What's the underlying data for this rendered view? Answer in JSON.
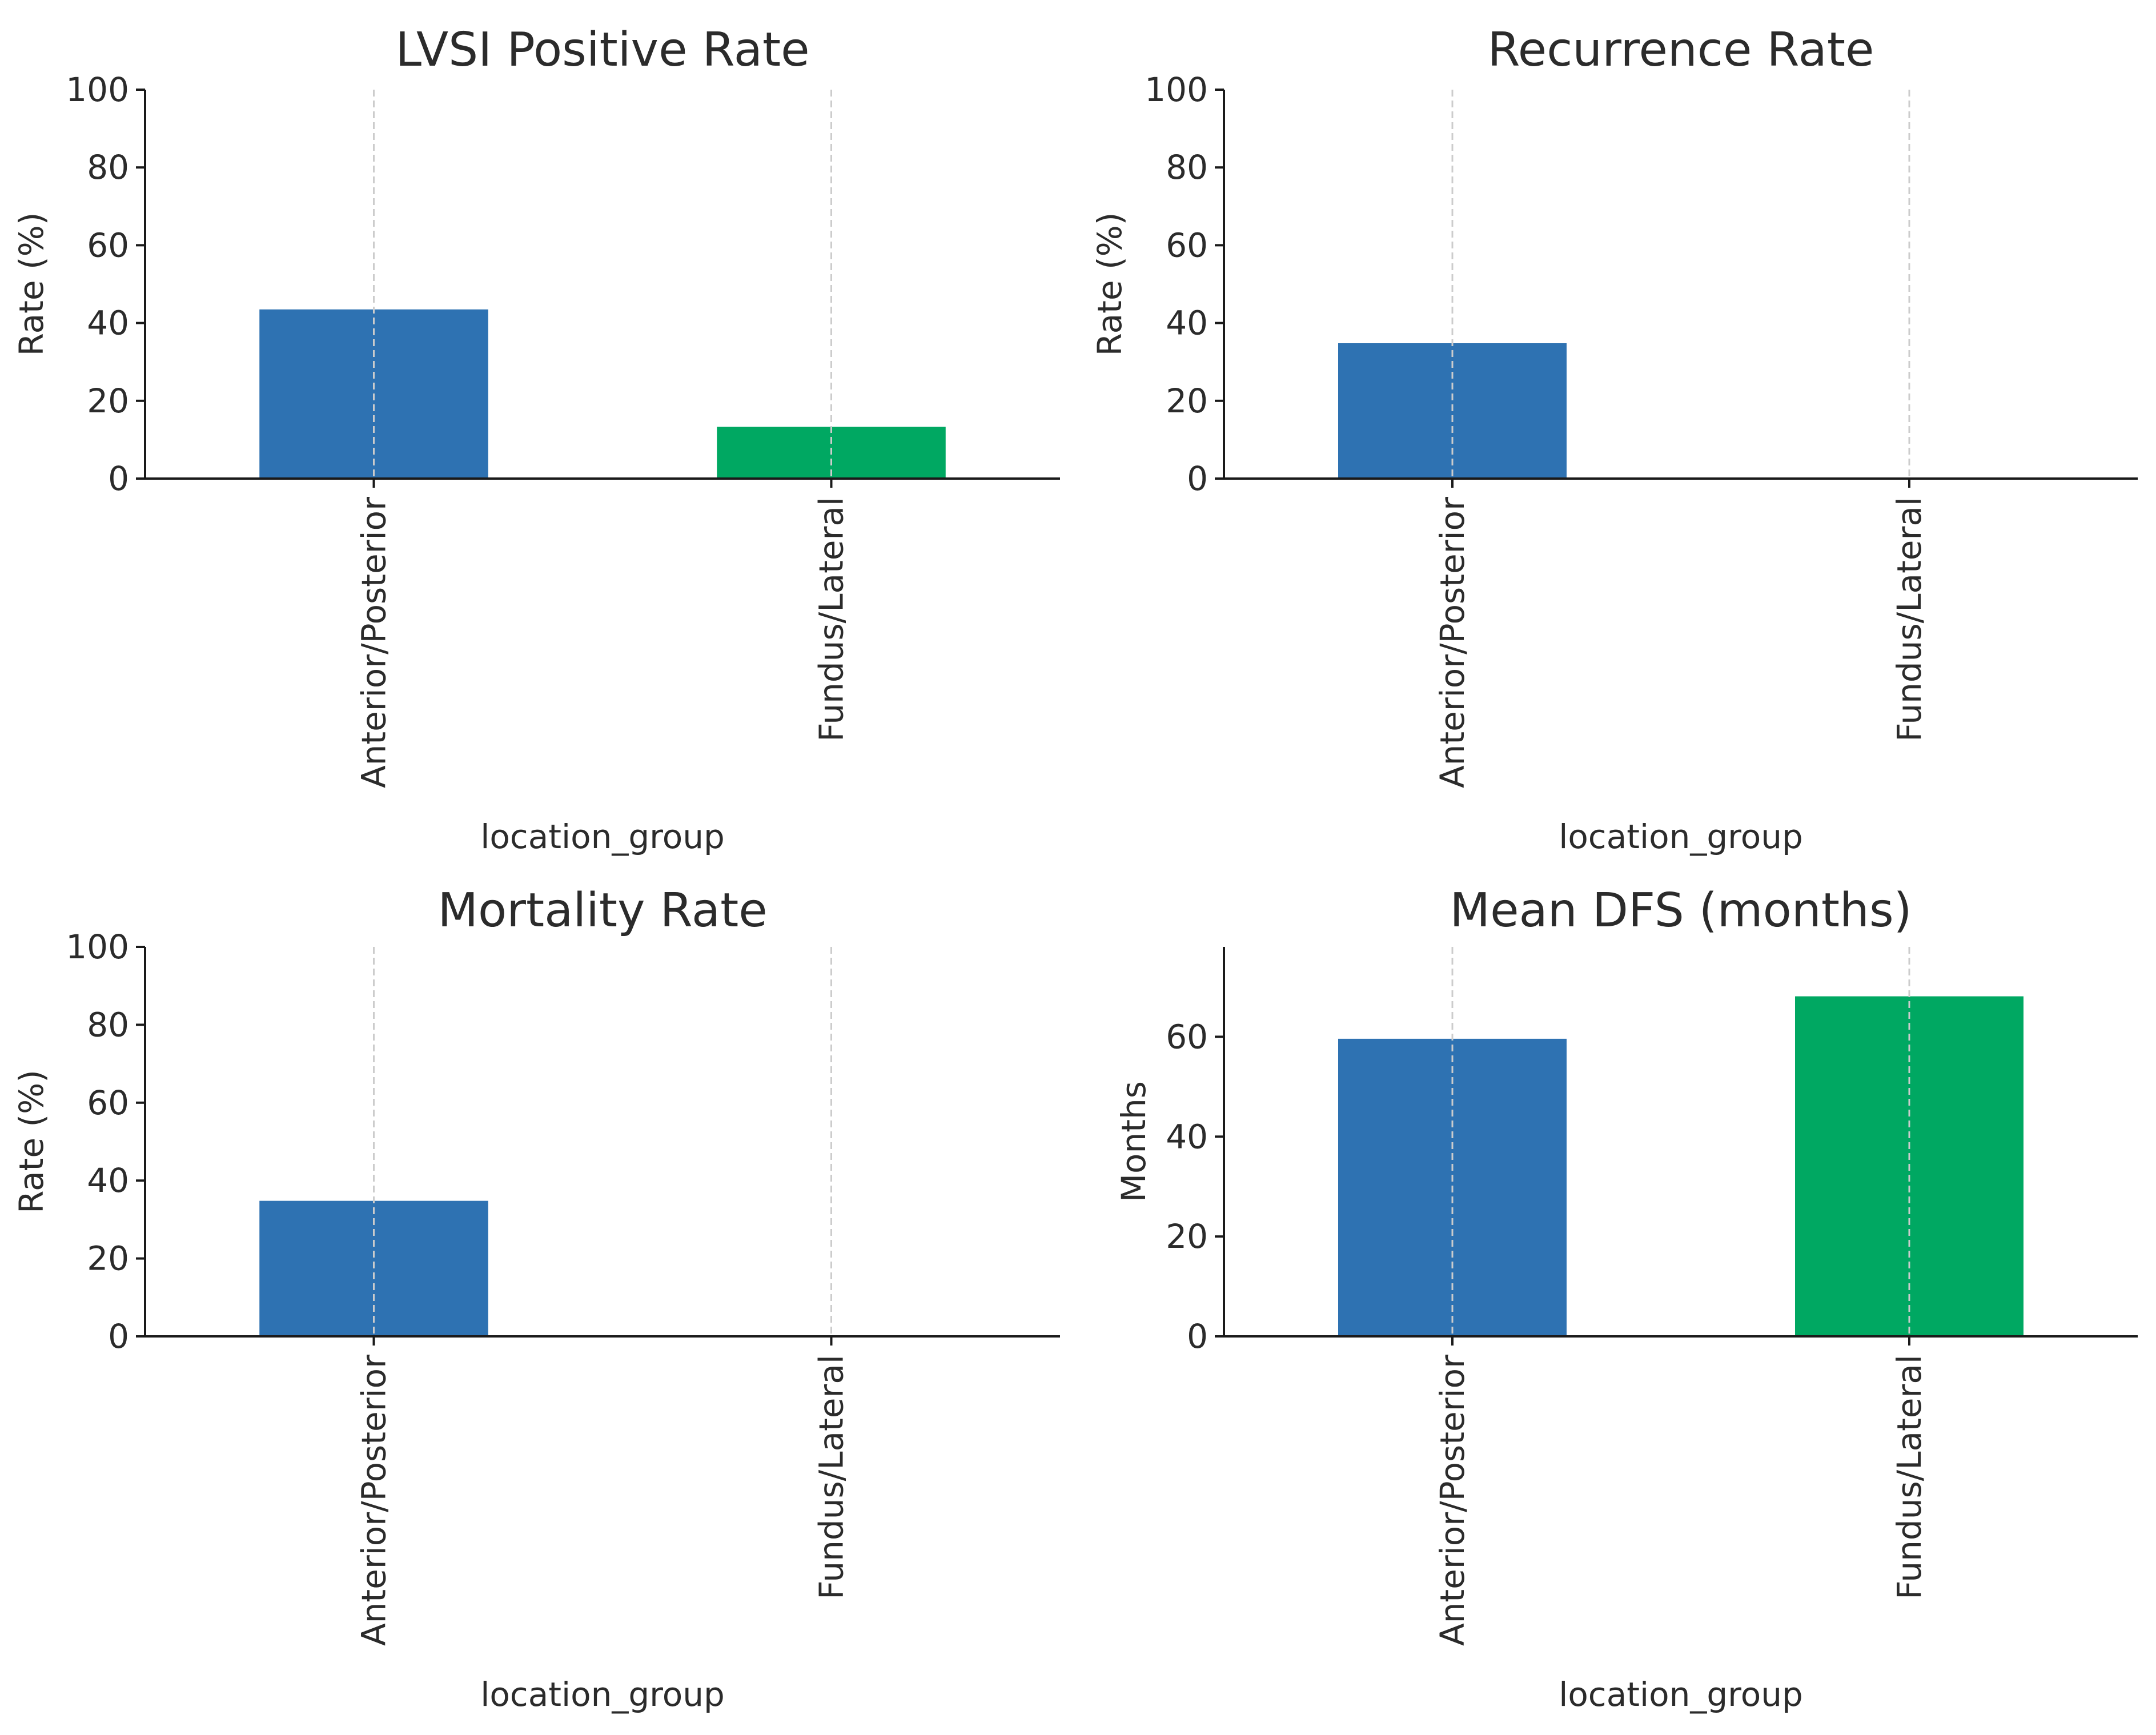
{
  "chart_data": [
    {
      "type": "bar",
      "title": "LVSI Positive Rate",
      "xlabel": "location_group",
      "ylabel": "Rate (%)",
      "categories": [
        "Anterior/Posterior",
        "Fundus/Lateral"
      ],
      "values": [
        43.5,
        13.3
      ],
      "ylim": [
        0,
        100
      ],
      "yticks": [
        "0",
        "20",
        "40",
        "60",
        "80",
        "100"
      ],
      "grid": "x",
      "colors": [
        "#2e72b2",
        "#00a862"
      ]
    },
    {
      "type": "bar",
      "title": "Recurrence Rate",
      "xlabel": "location_group",
      "ylabel": "Rate (%)",
      "categories": [
        "Anterior/Posterior",
        "Fundus/Lateral"
      ],
      "values": [
        34.8,
        0
      ],
      "ylim": [
        0,
        100
      ],
      "yticks": [
        "0",
        "20",
        "40",
        "60",
        "80",
        "100"
      ],
      "grid": "x",
      "colors": [
        "#2e72b2",
        "#00a862"
      ]
    },
    {
      "type": "bar",
      "title": "Mortality Rate",
      "xlabel": "location_group",
      "ylabel": "Rate (%)",
      "categories": [
        "Anterior/Posterior",
        "Fundus/Lateral"
      ],
      "values": [
        34.8,
        0
      ],
      "ylim": [
        0,
        100
      ],
      "yticks": [
        "0",
        "20",
        "40",
        "60",
        "80",
        "100"
      ],
      "grid": "x",
      "colors": [
        "#2e72b2",
        "#00a862"
      ]
    },
    {
      "type": "bar",
      "title": "Mean DFS (months)",
      "xlabel": "location_group",
      "ylabel": "Months",
      "categories": [
        "Anterior/Posterior",
        "Fundus/Lateral"
      ],
      "values": [
        59.6,
        68.1
      ],
      "ylim": [
        0,
        78
      ],
      "yticks": [
        "0",
        "20",
        "40",
        "60"
      ],
      "grid": "x",
      "colors": [
        "#2e72b2",
        "#00a862"
      ]
    }
  ],
  "colors": {
    "background": "#ffffff",
    "text": "#2b2b2b",
    "axis": "#1a1a1a",
    "grid": "#cccccc"
  }
}
